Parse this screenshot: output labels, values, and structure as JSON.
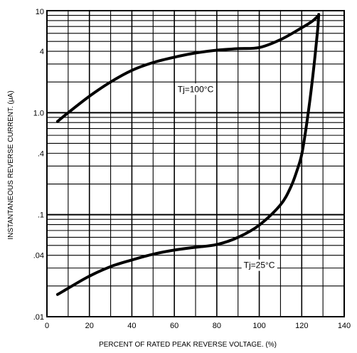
{
  "chart_data": {
    "type": "line",
    "xlabel": "PERCENT OF RATED PEAK REVERSE VOLTAGE. (%)",
    "ylabel": "INSTANTANEOUS REVERSE CURRENT. (μA)",
    "xlim": [
      0,
      140
    ],
    "ylim": [
      0.01,
      10
    ],
    "yscale": "log",
    "grid": true,
    "x_ticks": [
      0,
      20,
      40,
      60,
      80,
      100,
      120,
      140
    ],
    "x_tick_labels": [
      "0",
      "20",
      "40",
      "60",
      "80",
      "100",
      "120",
      "140"
    ],
    "y_ticks": [
      0.01,
      0.04,
      0.1,
      0.4,
      1.0,
      4,
      10
    ],
    "y_tick_labels": [
      ".01",
      ".04",
      ".1",
      ".4",
      "1.0",
      "4",
      "10"
    ],
    "annotations": [
      {
        "text": "Tj=100°C",
        "x": 70,
        "y": 1.7
      },
      {
        "text": "Tj=25°C",
        "x": 100,
        "y": 0.032
      }
    ],
    "series": [
      {
        "x": [
          5,
          10,
          20,
          30,
          40,
          50,
          60,
          70,
          80,
          90,
          100,
          110,
          120,
          125,
          127.5
        ],
        "y": [
          0.82,
          1.0,
          1.45,
          2.0,
          2.6,
          3.1,
          3.5,
          3.85,
          4.1,
          4.25,
          4.35,
          5.2,
          6.8,
          7.9,
          8.8
        ]
      },
      {
        "x": [
          5,
          10,
          20,
          30,
          40,
          50,
          60,
          70,
          80,
          90,
          100,
          110,
          115,
          118,
          120,
          122,
          124,
          126,
          127.5,
          128
        ],
        "y": [
          0.0165,
          0.019,
          0.025,
          0.031,
          0.036,
          0.041,
          0.045,
          0.048,
          0.051,
          0.06,
          0.079,
          0.125,
          0.19,
          0.28,
          0.39,
          0.7,
          1.4,
          3.2,
          6.5,
          9.2
        ]
      }
    ]
  }
}
